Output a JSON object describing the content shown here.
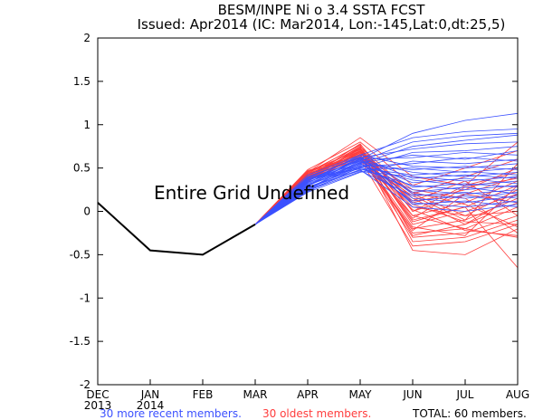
{
  "chart_data": {
    "type": "line",
    "title": "BESM/INPE Ni o 3.4 SSTA FCST",
    "subtitle": "Issued: Apr2014 (IC: Mar2014, Lon:-145,Lat:0,dt:25,5)",
    "annotation": "Entire Grid Undefined",
    "categories": [
      "DEC\n2013",
      "JAN\n2014",
      "FEB",
      "MAR",
      "APR",
      "MAY",
      "JUN",
      "JUL",
      "AUG"
    ],
    "ylim": [
      -2,
      2
    ],
    "yticks": [
      -2,
      -1.5,
      -1,
      -0.5,
      0,
      0.5,
      1,
      1.5,
      2
    ],
    "ytick_labels": [
      "-2",
      "-1.5",
      "-1",
      "-0.5",
      "0",
      "0.5",
      "1",
      "1.5",
      "2"
    ],
    "colors": {
      "observed": "#000000",
      "recent": "#3b50ff",
      "oldest": "#ff3c3c"
    },
    "observed": {
      "name": "Observed",
      "x": [
        0,
        1,
        2,
        3
      ],
      "values": [
        0.1,
        -0.45,
        -0.5,
        -0.15
      ]
    },
    "recent_members": [
      [
        -0.15,
        0.3,
        0.6,
        0.9,
        1.05,
        1.13
      ],
      [
        -0.15,
        0.35,
        0.65,
        0.85,
        0.92,
        0.95
      ],
      [
        -0.15,
        0.38,
        0.58,
        0.8,
        0.87,
        0.9
      ],
      [
        -0.15,
        0.25,
        0.55,
        0.75,
        0.82,
        0.88
      ],
      [
        -0.15,
        0.4,
        0.62,
        0.72,
        0.78,
        0.8
      ],
      [
        -0.15,
        0.28,
        0.5,
        0.68,
        0.7,
        0.75
      ],
      [
        -0.15,
        0.32,
        0.56,
        0.65,
        0.6,
        0.7
      ],
      [
        -0.15,
        0.36,
        0.6,
        0.62,
        0.68,
        0.65
      ],
      [
        -0.15,
        0.22,
        0.45,
        0.58,
        0.55,
        0.6
      ],
      [
        -0.15,
        0.3,
        0.52,
        0.55,
        0.62,
        0.58
      ],
      [
        -0.15,
        0.42,
        0.65,
        0.52,
        0.5,
        0.55
      ],
      [
        -0.15,
        0.27,
        0.48,
        0.5,
        0.45,
        0.5
      ],
      [
        -0.15,
        0.34,
        0.54,
        0.48,
        0.52,
        0.48
      ],
      [
        -0.15,
        0.29,
        0.58,
        0.45,
        0.4,
        0.45
      ],
      [
        -0.15,
        0.38,
        0.5,
        0.42,
        0.46,
        0.42
      ],
      [
        -0.15,
        0.24,
        0.46,
        0.4,
        0.35,
        0.4
      ],
      [
        -0.15,
        0.33,
        0.62,
        0.38,
        0.42,
        0.38
      ],
      [
        -0.15,
        0.31,
        0.53,
        0.36,
        0.3,
        0.35
      ],
      [
        -0.15,
        0.26,
        0.57,
        0.33,
        0.38,
        0.32
      ],
      [
        -0.15,
        0.37,
        0.49,
        0.3,
        0.25,
        0.3
      ],
      [
        -0.15,
        0.35,
        0.6,
        0.28,
        0.32,
        0.28
      ],
      [
        -0.15,
        0.23,
        0.51,
        0.25,
        0.2,
        0.25
      ],
      [
        -0.15,
        0.3,
        0.55,
        0.22,
        0.28,
        0.2
      ],
      [
        -0.15,
        0.39,
        0.63,
        0.2,
        0.15,
        0.22
      ],
      [
        -0.15,
        0.28,
        0.47,
        0.18,
        0.22,
        0.15
      ],
      [
        -0.15,
        0.33,
        0.59,
        0.15,
        0.1,
        0.18
      ],
      [
        -0.15,
        0.27,
        0.52,
        0.12,
        0.18,
        0.1
      ],
      [
        -0.15,
        0.36,
        0.56,
        0.1,
        0.05,
        0.12
      ],
      [
        -0.15,
        0.3,
        0.61,
        0.08,
        0.12,
        0.05
      ],
      [
        -0.15,
        0.25,
        0.48,
        0.05,
        0.0,
        0.08
      ]
    ],
    "oldest_members": [
      [
        -0.15,
        0.45,
        0.85,
        0.4,
        0.3,
        0.8
      ],
      [
        -0.15,
        0.48,
        0.8,
        0.3,
        0.5,
        0.7
      ],
      [
        -0.15,
        0.4,
        0.75,
        0.2,
        0.4,
        0.6
      ],
      [
        -0.15,
        0.42,
        0.7,
        0.1,
        0.25,
        0.5
      ],
      [
        -0.15,
        0.38,
        0.78,
        0.0,
        0.2,
        0.4
      ],
      [
        -0.15,
        0.44,
        0.72,
        -0.05,
        0.1,
        0.35
      ],
      [
        -0.15,
        0.36,
        0.68,
        -0.1,
        0.05,
        0.3
      ],
      [
        -0.15,
        0.47,
        0.65,
        0.05,
        -0.05,
        0.25
      ],
      [
        -0.15,
        0.41,
        0.74,
        -0.15,
        0.0,
        0.2
      ],
      [
        -0.15,
        0.39,
        0.62,
        -0.2,
        -0.1,
        0.15
      ],
      [
        -0.15,
        0.43,
        0.69,
        0.15,
        -0.15,
        0.1
      ],
      [
        -0.15,
        0.37,
        0.66,
        -0.25,
        -0.2,
        0.05
      ],
      [
        -0.15,
        0.46,
        0.71,
        0.2,
        -0.05,
        0.0
      ],
      [
        -0.15,
        0.35,
        0.64,
        -0.3,
        -0.25,
        -0.05
      ],
      [
        -0.15,
        0.44,
        0.77,
        -0.35,
        -0.3,
        -0.1
      ],
      [
        -0.15,
        0.4,
        0.6,
        -0.4,
        -0.35,
        -0.15
      ],
      [
        -0.15,
        0.38,
        0.73,
        -0.45,
        -0.5,
        -0.2
      ],
      [
        -0.15,
        0.42,
        0.67,
        0.25,
        0.15,
        -0.25
      ],
      [
        -0.15,
        0.36,
        0.63,
        -0.05,
        -0.2,
        -0.3
      ],
      [
        -0.15,
        0.45,
        0.76,
        0.0,
        0.3,
        0.45
      ],
      [
        -0.15,
        0.41,
        0.7,
        -0.12,
        0.05,
        -0.65
      ],
      [
        -0.15,
        0.39,
        0.58,
        0.18,
        -0.1,
        0.55
      ],
      [
        -0.15,
        0.43,
        0.66,
        -0.18,
        -0.28,
        0.3
      ],
      [
        -0.15,
        0.37,
        0.72,
        0.08,
        -0.12,
        -0.15
      ],
      [
        -0.15,
        0.46,
        0.62,
        -0.22,
        0.2,
        0.1
      ],
      [
        -0.15,
        0.4,
        0.68,
        0.12,
        0.35,
        -0.05
      ],
      [
        -0.15,
        0.34,
        0.74,
        -0.28,
        -0.15,
        0.2
      ],
      [
        -0.15,
        0.44,
        0.61,
        0.22,
        0.08,
        -0.18
      ],
      [
        -0.15,
        0.38,
        0.69,
        -0.08,
        0.28,
        0.38
      ],
      [
        -0.15,
        0.42,
        0.65,
        0.02,
        -0.22,
        -0.28
      ]
    ],
    "legend": {
      "recent": "30 more recent members.",
      "oldest": "30 oldest members.",
      "total": "TOTAL: 60 members."
    }
  }
}
